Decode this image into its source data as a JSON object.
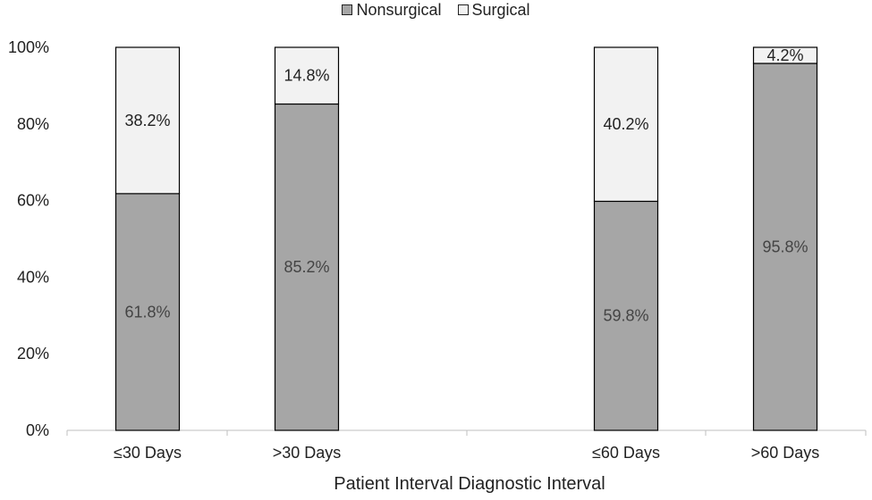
{
  "chart_data": {
    "type": "bar",
    "stacked": true,
    "categories": [
      "≤30 Days",
      ">30 Days",
      "≤60 Days",
      ">60 Days"
    ],
    "series": [
      {
        "name": "Nonsurgical",
        "values": [
          61.8,
          85.2,
          59.8,
          95.8
        ],
        "labels": [
          "61.8%",
          "85.2%",
          "59.8%",
          "95.8%"
        ]
      },
      {
        "name": "Surgical",
        "values": [
          38.2,
          14.8,
          40.2,
          4.2
        ],
        "labels": [
          "38.2%",
          "14.8%",
          "40.2%",
          "4.2%"
        ]
      }
    ],
    "xlabel": "Patient Interval Diagnostic Interval",
    "ylabel": "",
    "ylim": [
      0,
      100
    ],
    "yticks": [
      "0%",
      "20%",
      "40%",
      "60%",
      "80%",
      "100%"
    ],
    "legend_position": "top",
    "grid": false,
    "colors": {
      "Nonsurgical": "#a6a6a6",
      "Surgical": "#f2f2f2",
      "outline": "#000000",
      "axis": "#bfbfbf"
    }
  }
}
